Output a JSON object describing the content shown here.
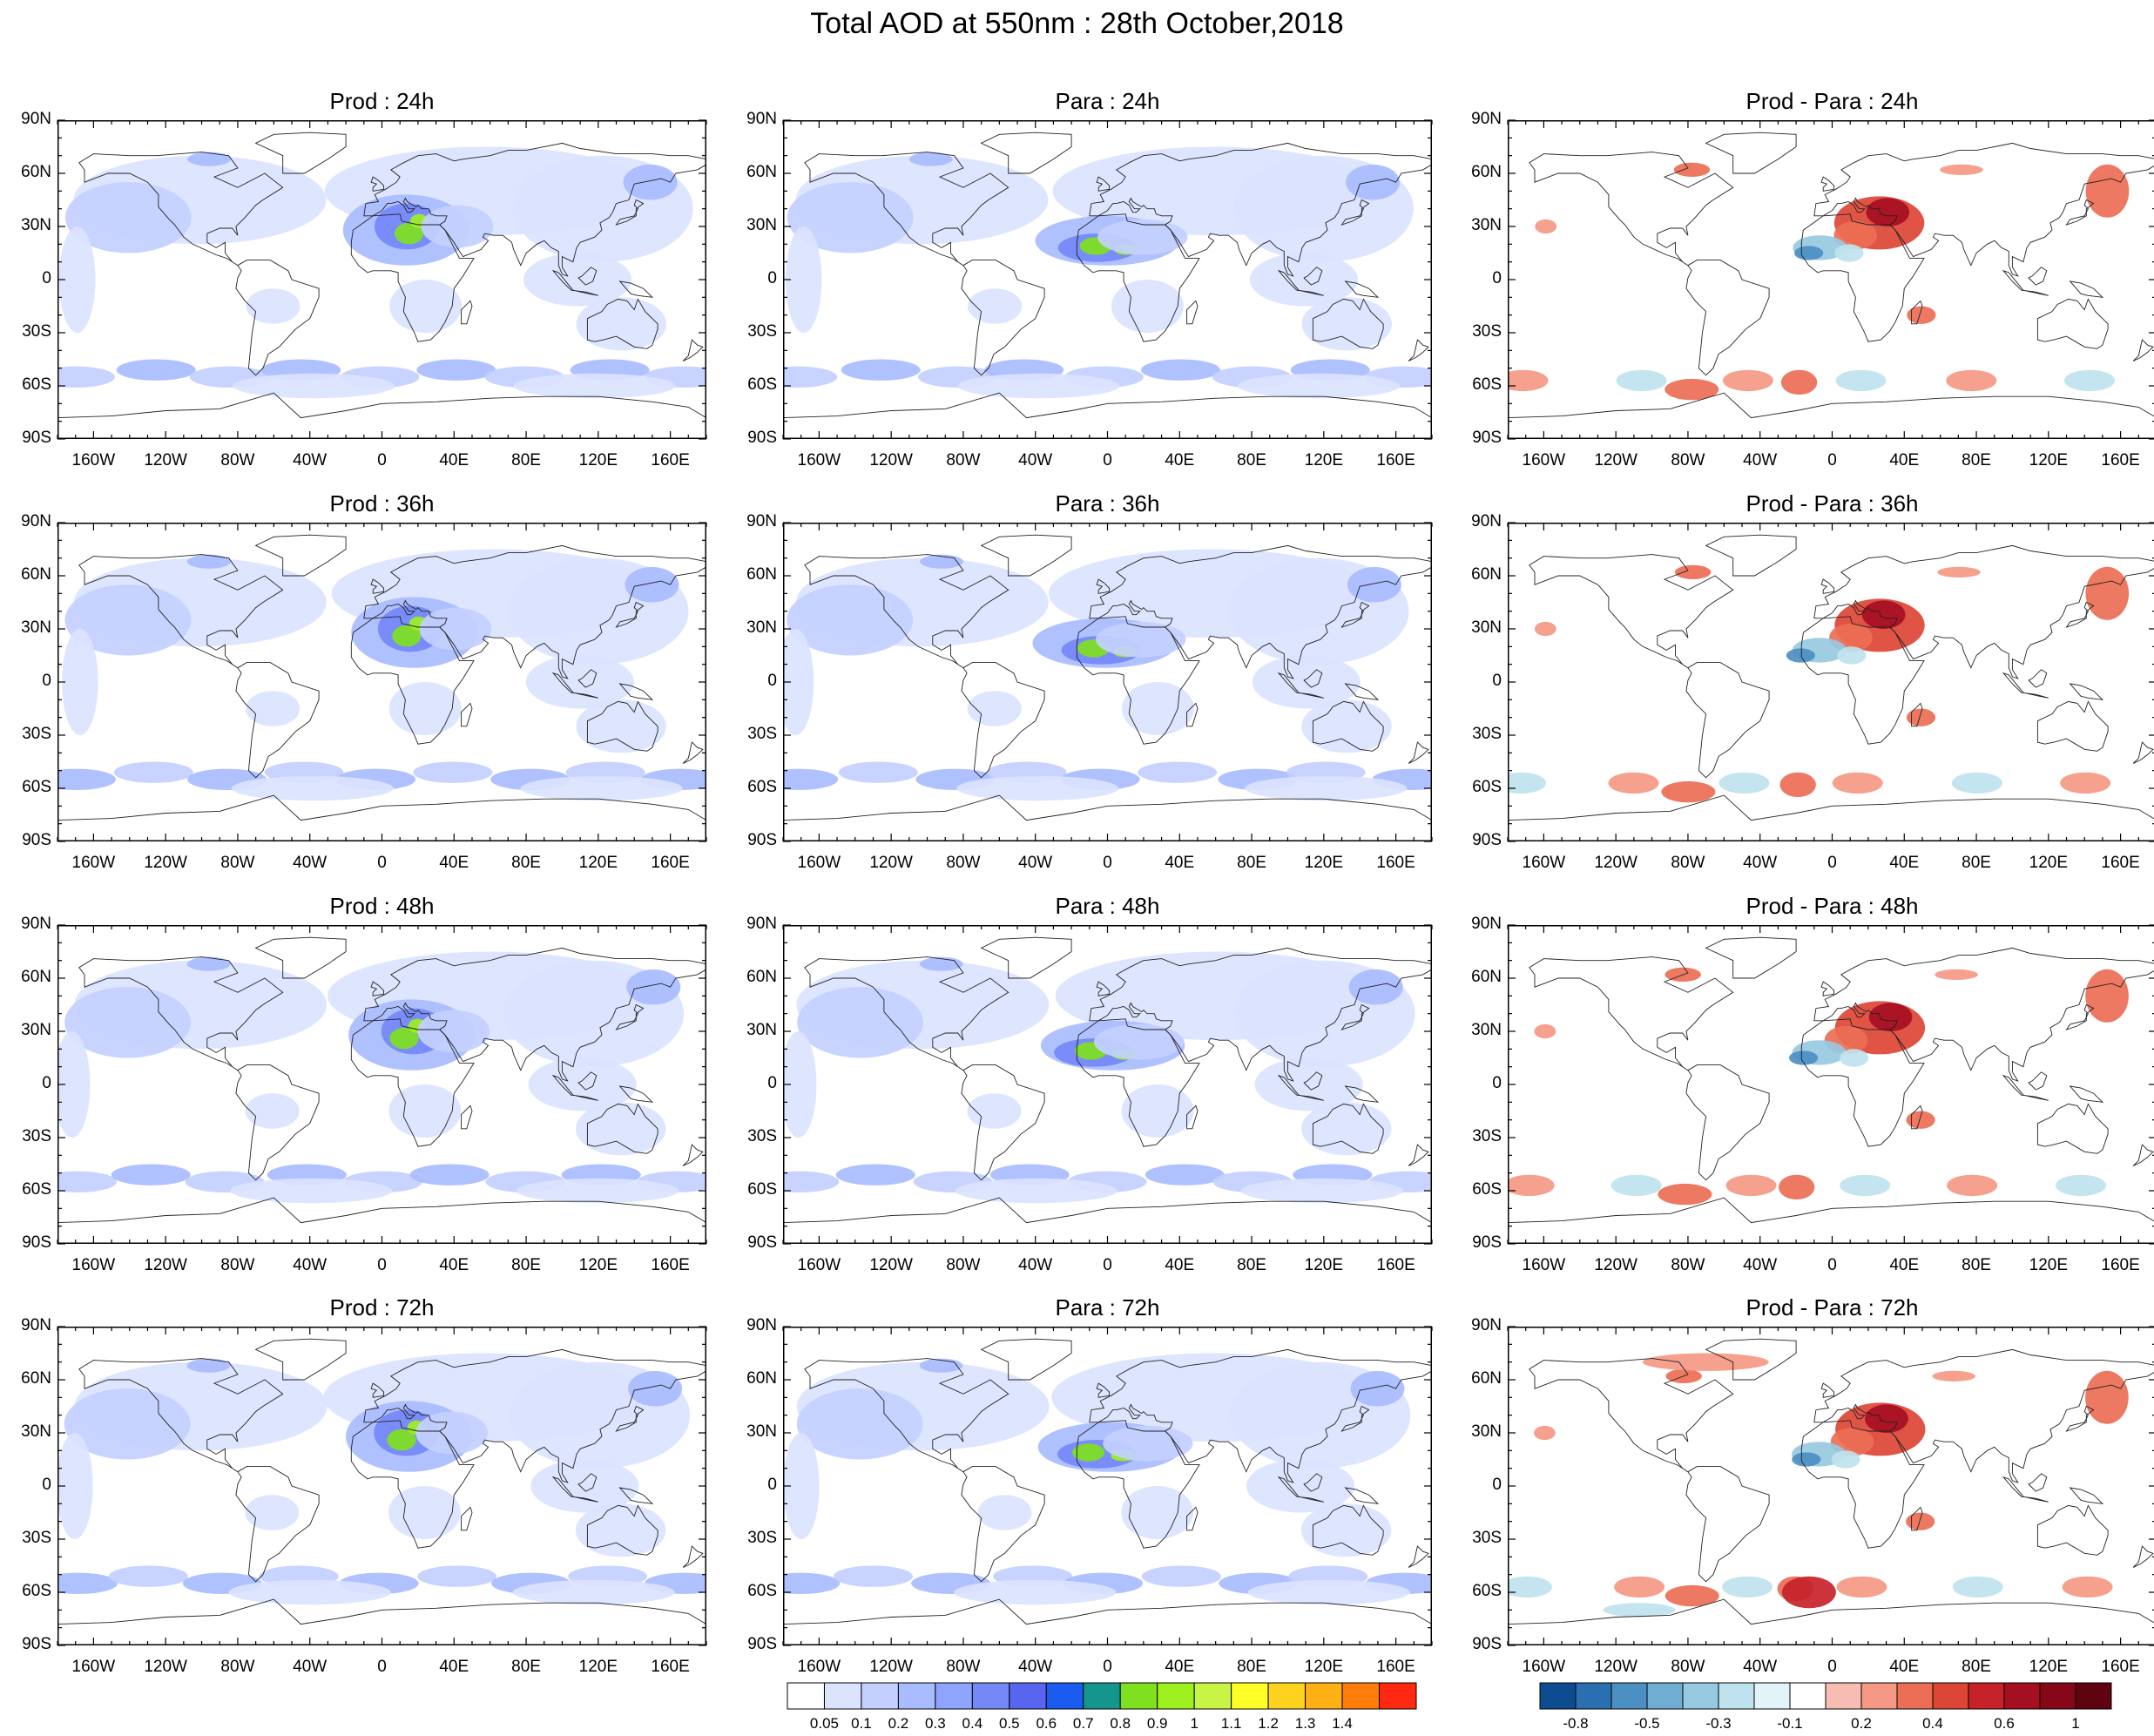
{
  "title": "Total AOD at 550nm : 28th October,2018",
  "panels": [
    {
      "title": "Prod : 24h",
      "kind": "aod",
      "lead": 24
    },
    {
      "title": "Para : 24h",
      "kind": "aod",
      "lead": 24
    },
    {
      "title": "Prod - Para : 24h",
      "kind": "diff",
      "lead": 24
    },
    {
      "title": "Prod : 36h",
      "kind": "aod",
      "lead": 36
    },
    {
      "title": "Para : 36h",
      "kind": "aod",
      "lead": 36
    },
    {
      "title": "Prod - Para : 36h",
      "kind": "diff",
      "lead": 36
    },
    {
      "title": "Prod : 48h",
      "kind": "aod",
      "lead": 48
    },
    {
      "title": "Para : 48h",
      "kind": "aod",
      "lead": 48
    },
    {
      "title": "Prod - Para : 48h",
      "kind": "diff",
      "lead": 48
    },
    {
      "title": "Prod : 72h",
      "kind": "aod",
      "lead": 72
    },
    {
      "title": "Para : 72h",
      "kind": "aod",
      "lead": 72
    },
    {
      "title": "Prod - Para : 72h",
      "kind": "diff",
      "lead": 72
    }
  ],
  "lat_labels": [
    "90N",
    "60N",
    "30N",
    "0",
    "30S",
    "60S",
    "90S"
  ],
  "lon_labels": [
    "160W",
    "120W",
    "80W",
    "40W",
    "0",
    "40E",
    "80E",
    "120E",
    "160E"
  ],
  "lon_values": [
    -160,
    -120,
    -80,
    -40,
    0,
    40,
    80,
    120,
    160
  ],
  "aod_colorbar": {
    "labels": [
      "0.05",
      "0.1",
      "0.2",
      "0.3",
      "0.4",
      "0.5",
      "0.6",
      "0.7",
      "0.8",
      "0.9",
      "1",
      "1.1",
      "1.2",
      "1.3",
      "1.4"
    ],
    "colors": [
      "#ffffff",
      "#dbe3ff",
      "#c3d0ff",
      "#a9bcff",
      "#8ea5ff",
      "#7488f8",
      "#5865ee",
      "#1a5cf0",
      "#14968c",
      "#7fe020",
      "#9ef01e",
      "#c8f545",
      "#ffff28",
      "#ffd21e",
      "#ffb014",
      "#ff7c0a",
      "#ff2810"
    ]
  },
  "diff_colorbar": {
    "labels": [
      "-0.8",
      "-0.5",
      "-0.3",
      "-0.1",
      "0.2",
      "0.4",
      "0.6",
      "1"
    ],
    "colors": [
      "#0e4c92",
      "#2a70b0",
      "#4b8fc3",
      "#6fadd3",
      "#97c9e0",
      "#bfe3ee",
      "#e2f4f8",
      "#ffffff",
      "#f8bdb2",
      "#f59884",
      "#ec6e55",
      "#dd4536",
      "#c52329",
      "#a50f22",
      "#860818",
      "#5e0410"
    ]
  }
}
